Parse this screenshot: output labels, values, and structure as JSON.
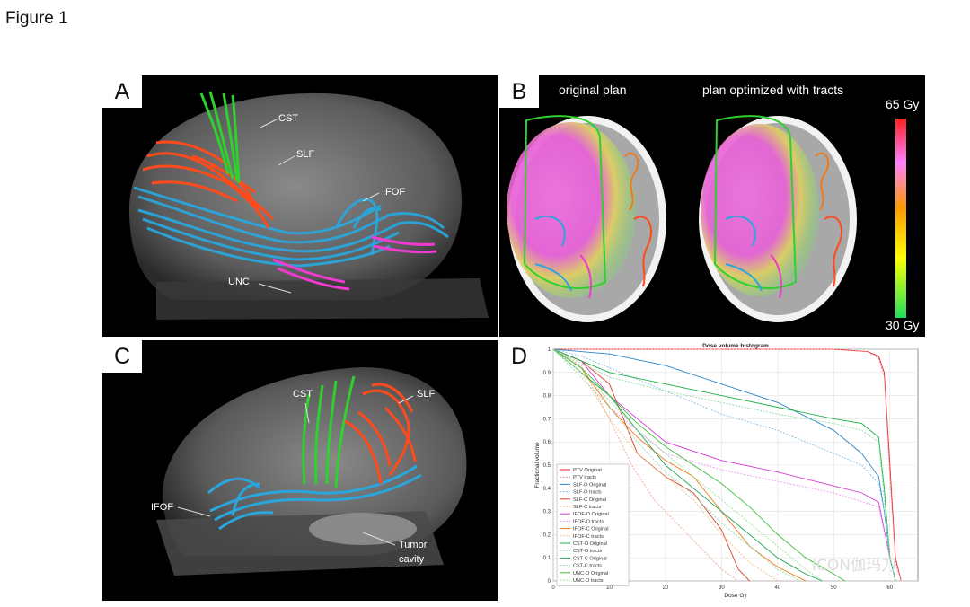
{
  "figure_title": "Figure 1",
  "colors": {
    "cst": "#2fd02f",
    "slf": "#ff4a1c",
    "ifof": "#2aa6dc",
    "unc": "#f03ad0"
  },
  "panel_a": {
    "letter": "A",
    "labels": {
      "cst": "CST",
      "slf": "SLF",
      "ifof": "IFOF",
      "unc": "UNC"
    }
  },
  "panel_b": {
    "letter": "B",
    "original_plan": "original plan",
    "optimized_plan": "plan optimized with tracts",
    "colorbar_max": "65 Gy",
    "colorbar_min": "30 Gy"
  },
  "panel_c": {
    "letter": "C",
    "labels": {
      "cst": "CST",
      "slf": "SLF",
      "ifof": "IFOF",
      "tumor1": "Tumor",
      "tumor2": "cavity"
    }
  },
  "panel_d": {
    "letter": "D",
    "watermark": "ICON伽玛刀"
  },
  "chart_data": {
    "type": "line",
    "title": "Dose volume histogram",
    "xlabel": "Dose Gy",
    "ylabel": "Fractional volume",
    "xlim": [
      0,
      65
    ],
    "ylim": [
      0,
      1
    ],
    "xticks": [
      0,
      10,
      20,
      30,
      40,
      50,
      60
    ],
    "yticks": [
      0,
      0.1,
      0.2,
      0.3,
      0.4,
      0.5,
      0.6,
      0.7,
      0.8,
      0.9,
      1
    ],
    "grid": true,
    "legend_position": "bottom-left",
    "series": [
      {
        "name": "PTV Original",
        "color": "#e8212b",
        "dash": false,
        "x": [
          0,
          50,
          56,
          58,
          59,
          60,
          61,
          62
        ],
        "y": [
          1,
          1,
          0.99,
          0.97,
          0.9,
          0.5,
          0.1,
          0
        ]
      },
      {
        "name": "PTV tracts",
        "color": "#f28b8b",
        "dash": true,
        "x": [
          0,
          50,
          56,
          58,
          59,
          60,
          61,
          62
        ],
        "y": [
          1,
          1,
          0.99,
          0.96,
          0.88,
          0.45,
          0.08,
          0
        ]
      },
      {
        "name": "SLF-O Original",
        "color": "#2e86c8",
        "dash": false,
        "x": [
          0,
          10,
          20,
          30,
          40,
          50,
          55,
          58,
          59,
          60,
          61
        ],
        "y": [
          1,
          0.98,
          0.93,
          0.85,
          0.77,
          0.65,
          0.55,
          0.45,
          0.3,
          0.1,
          0
        ]
      },
      {
        "name": "SLF-O tracts",
        "color": "#86bfe6",
        "dash": true,
        "x": [
          0,
          5,
          10,
          20,
          30,
          40,
          50,
          55,
          58,
          59,
          60,
          61
        ],
        "y": [
          1,
          0.97,
          0.92,
          0.82,
          0.72,
          0.65,
          0.55,
          0.5,
          0.42,
          0.3,
          0.1,
          0
        ]
      },
      {
        "name": "SLF-C Original",
        "color": "#d9442a",
        "dash": false,
        "x": [
          0,
          5,
          10,
          15,
          20,
          25,
          30,
          33,
          35
        ],
        "y": [
          1,
          0.95,
          0.85,
          0.55,
          0.45,
          0.38,
          0.22,
          0.05,
          0
        ]
      },
      {
        "name": "SLF-C tracts",
        "color": "#f2a48f",
        "dash": true,
        "x": [
          0,
          5,
          10,
          14,
          18,
          22,
          26,
          30,
          33
        ],
        "y": [
          1,
          0.93,
          0.7,
          0.5,
          0.35,
          0.25,
          0.15,
          0.05,
          0
        ]
      },
      {
        "name": "IFOF-O Original",
        "color": "#d23ad6",
        "dash": false,
        "x": [
          0,
          5,
          10,
          20,
          30,
          40,
          50,
          55,
          58,
          60,
          61
        ],
        "y": [
          1,
          0.95,
          0.8,
          0.6,
          0.52,
          0.47,
          0.41,
          0.38,
          0.34,
          0.1,
          0
        ]
      },
      {
        "name": "IFOF-O tracts",
        "color": "#ee97ef",
        "dash": true,
        "x": [
          0,
          5,
          10,
          20,
          30,
          40,
          50,
          58,
          60,
          61
        ],
        "y": [
          1,
          0.92,
          0.75,
          0.55,
          0.48,
          0.43,
          0.38,
          0.32,
          0.1,
          0
        ]
      },
      {
        "name": "IFOF-C Original",
        "color": "#f07a1a",
        "dash": false,
        "x": [
          0,
          5,
          10,
          15,
          20,
          25,
          30,
          35,
          40,
          45
        ],
        "y": [
          1,
          0.92,
          0.75,
          0.62,
          0.52,
          0.45,
          0.3,
          0.15,
          0.06,
          0
        ]
      },
      {
        "name": "IFOF-C tracts",
        "color": "#f6bf8a",
        "dash": true,
        "x": [
          0,
          5,
          10,
          15,
          20,
          25,
          30,
          35,
          40
        ],
        "y": [
          1,
          0.9,
          0.7,
          0.55,
          0.45,
          0.35,
          0.2,
          0.08,
          0
        ]
      },
      {
        "name": "CST-O Original",
        "color": "#20b04a",
        "dash": false,
        "x": [
          0,
          10,
          20,
          30,
          40,
          50,
          55,
          58,
          59,
          60,
          61
        ],
        "y": [
          1,
          0.9,
          0.85,
          0.8,
          0.75,
          0.7,
          0.68,
          0.62,
          0.4,
          0.1,
          0
        ]
      },
      {
        "name": "CST-O tracts",
        "color": "#8fdca4",
        "dash": true,
        "x": [
          0,
          10,
          20,
          30,
          40,
          50,
          55,
          58,
          60,
          61
        ],
        "y": [
          1,
          0.88,
          0.82,
          0.77,
          0.72,
          0.68,
          0.65,
          0.6,
          0.1,
          0
        ]
      },
      {
        "name": "CST-C Original",
        "color": "#24a85a",
        "dash": false,
        "x": [
          0,
          5,
          10,
          15,
          20,
          25,
          30,
          35,
          40,
          45,
          48
        ],
        "y": [
          1,
          0.9,
          0.8,
          0.65,
          0.5,
          0.4,
          0.3,
          0.2,
          0.1,
          0.03,
          0
        ]
      },
      {
        "name": "CST-C tracts",
        "color": "#93d9ae",
        "dash": true,
        "x": [
          0,
          5,
          10,
          15,
          20,
          25,
          30,
          35,
          40,
          44
        ],
        "y": [
          1,
          0.88,
          0.75,
          0.6,
          0.47,
          0.37,
          0.25,
          0.15,
          0.05,
          0
        ]
      },
      {
        "name": "UNC-O Original",
        "color": "#3fc13a",
        "dash": false,
        "x": [
          0,
          5,
          10,
          15,
          20,
          25,
          30,
          35,
          40,
          45,
          50,
          52
        ],
        "y": [
          1,
          0.92,
          0.8,
          0.68,
          0.58,
          0.5,
          0.42,
          0.32,
          0.2,
          0.1,
          0.03,
          0
        ]
      },
      {
        "name": "UNC-O tracts",
        "color": "#9be397",
        "dash": true,
        "x": [
          0,
          5,
          10,
          15,
          20,
          25,
          30,
          35,
          40,
          45,
          48
        ],
        "y": [
          1,
          0.9,
          0.78,
          0.65,
          0.55,
          0.45,
          0.35,
          0.25,
          0.15,
          0.05,
          0
        ]
      }
    ]
  }
}
